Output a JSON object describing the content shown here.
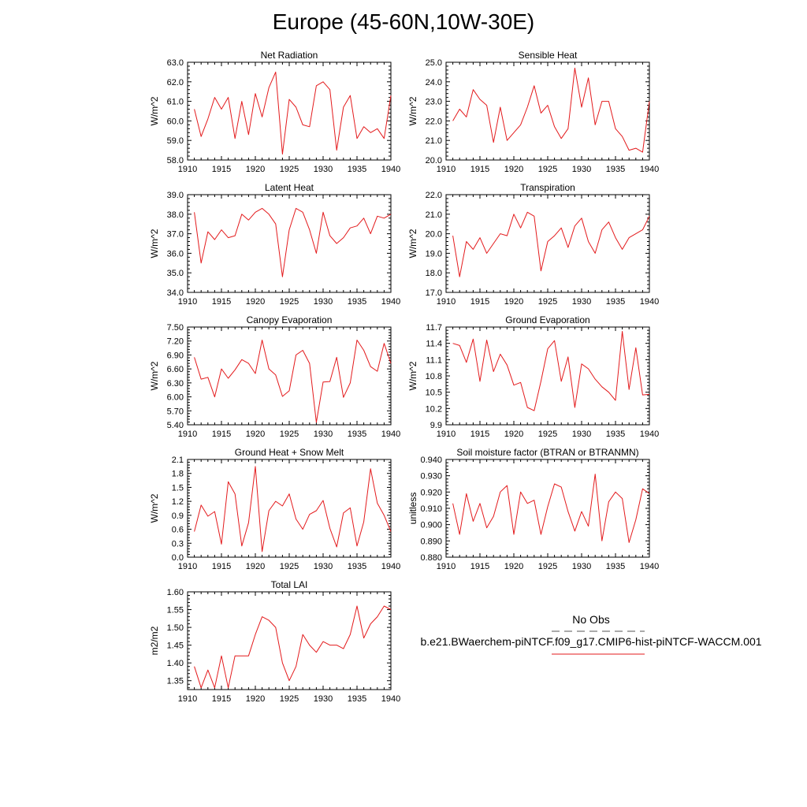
{
  "figure": {
    "title": "Europe (45-60N,10W-30E)"
  },
  "legend": {
    "obs_label": "No Obs",
    "obs_color": "#555555",
    "run_label": "b.e21.BWaerchem-piNTCF.f09_g17.CMIP6-hist-piNTCF-WACCM.001",
    "run_color": "#e31a1c"
  },
  "chart_data": [
    {
      "type": "line",
      "title": "Net Radiation",
      "ylabel": "W/m^2",
      "xlabel": "",
      "xlim": [
        1910,
        1940
      ],
      "ylim": [
        58.0,
        63.0
      ],
      "xticks": [
        1910,
        1915,
        1920,
        1925,
        1930,
        1935,
        1940
      ],
      "yticks": [
        "58.0",
        "59.0",
        "60.0",
        "61.0",
        "62.0",
        "63.0"
      ],
      "x": [
        1911,
        1912,
        1913,
        1914,
        1915,
        1916,
        1917,
        1918,
        1919,
        1920,
        1921,
        1922,
        1923,
        1924,
        1925,
        1926,
        1927,
        1928,
        1929,
        1930,
        1931,
        1932,
        1933,
        1934,
        1935,
        1936,
        1937,
        1938,
        1939,
        1940
      ],
      "series": [
        {
          "color": "#e31a1c",
          "values": [
            60.6,
            59.2,
            60.1,
            61.2,
            60.6,
            61.2,
            59.1,
            61.0,
            59.3,
            61.4,
            60.2,
            61.7,
            62.5,
            58.3,
            61.1,
            60.7,
            59.8,
            59.7,
            61.8,
            62.0,
            61.6,
            58.5,
            60.7,
            61.3,
            59.1,
            59.7,
            59.4,
            59.6,
            59.1,
            61.3
          ]
        }
      ]
    },
    {
      "type": "line",
      "title": "Sensible Heat",
      "ylabel": "W/m^2",
      "xlabel": "",
      "xlim": [
        1910,
        1940
      ],
      "ylim": [
        20.0,
        25.0
      ],
      "xticks": [
        1910,
        1915,
        1920,
        1925,
        1930,
        1935,
        1940
      ],
      "yticks": [
        "20.0",
        "21.0",
        "22.0",
        "23.0",
        "24.0",
        "25.0"
      ],
      "x": [
        1911,
        1912,
        1913,
        1914,
        1915,
        1916,
        1917,
        1918,
        1919,
        1920,
        1921,
        1922,
        1923,
        1924,
        1925,
        1926,
        1927,
        1928,
        1929,
        1930,
        1931,
        1932,
        1933,
        1934,
        1935,
        1936,
        1937,
        1938,
        1939,
        1940
      ],
      "series": [
        {
          "color": "#e31a1c",
          "values": [
            22.0,
            22.6,
            22.2,
            23.6,
            23.1,
            22.8,
            20.9,
            22.7,
            21.0,
            21.4,
            21.8,
            22.7,
            23.8,
            22.4,
            22.8,
            21.7,
            21.1,
            21.6,
            24.7,
            22.7,
            24.2,
            21.8,
            23.0,
            23.0,
            21.6,
            21.2,
            20.5,
            20.6,
            20.4,
            23.0
          ]
        }
      ]
    },
    {
      "type": "line",
      "title": "Latent Heat",
      "ylabel": "W/m^2",
      "xlabel": "",
      "xlim": [
        1910,
        1940
      ],
      "ylim": [
        34.0,
        39.0
      ],
      "xticks": [
        1910,
        1915,
        1920,
        1925,
        1930,
        1935,
        1940
      ],
      "yticks": [
        "34.0",
        "35.0",
        "36.0",
        "37.0",
        "38.0",
        "39.0"
      ],
      "x": [
        1911,
        1912,
        1913,
        1914,
        1915,
        1916,
        1917,
        1918,
        1919,
        1920,
        1921,
        1922,
        1923,
        1924,
        1925,
        1926,
        1927,
        1928,
        1929,
        1930,
        1931,
        1932,
        1933,
        1934,
        1935,
        1936,
        1937,
        1938,
        1939,
        1940
      ],
      "series": [
        {
          "color": "#e31a1c",
          "values": [
            38.1,
            35.5,
            37.1,
            36.7,
            37.2,
            36.8,
            36.9,
            38.0,
            37.7,
            38.1,
            38.3,
            38.0,
            37.5,
            34.8,
            37.2,
            38.3,
            38.1,
            37.2,
            36.0,
            38.1,
            36.9,
            36.5,
            36.8,
            37.3,
            37.4,
            37.8,
            37.0,
            37.9,
            37.8,
            38.0
          ]
        }
      ]
    },
    {
      "type": "line",
      "title": "Transpiration",
      "ylabel": "W/m^2",
      "xlabel": "",
      "xlim": [
        1910,
        1940
      ],
      "ylim": [
        17.0,
        22.0
      ],
      "xticks": [
        1910,
        1915,
        1920,
        1925,
        1930,
        1935,
        1940
      ],
      "yticks": [
        "17.0",
        "18.0",
        "19.0",
        "20.0",
        "21.0",
        "22.0"
      ],
      "x": [
        1911,
        1912,
        1913,
        1914,
        1915,
        1916,
        1917,
        1918,
        1919,
        1920,
        1921,
        1922,
        1923,
        1924,
        1925,
        1926,
        1927,
        1928,
        1929,
        1930,
        1931,
        1932,
        1933,
        1934,
        1935,
        1936,
        1937,
        1938,
        1939,
        1940
      ],
      "series": [
        {
          "color": "#e31a1c",
          "values": [
            19.9,
            17.8,
            19.6,
            19.2,
            19.8,
            19.0,
            19.5,
            20.0,
            19.9,
            21.0,
            20.3,
            21.1,
            20.9,
            18.1,
            19.6,
            19.9,
            20.3,
            19.3,
            20.4,
            20.8,
            19.6,
            19.0,
            20.2,
            20.6,
            19.8,
            19.2,
            19.8,
            20.0,
            20.2,
            20.9
          ]
        }
      ]
    },
    {
      "type": "line",
      "title": "Canopy Evaporation",
      "ylabel": "W/m^2",
      "xlabel": "",
      "xlim": [
        1910,
        1940
      ],
      "ylim": [
        5.4,
        7.5
      ],
      "xticks": [
        1910,
        1915,
        1920,
        1925,
        1930,
        1935,
        1940
      ],
      "yticks": [
        "5.40",
        "5.70",
        "6.00",
        "6.30",
        "6.60",
        "6.90",
        "7.20",
        "7.50"
      ],
      "x": [
        1911,
        1912,
        1913,
        1914,
        1915,
        1916,
        1917,
        1918,
        1919,
        1920,
        1921,
        1922,
        1923,
        1924,
        1925,
        1926,
        1927,
        1928,
        1929,
        1930,
        1931,
        1932,
        1933,
        1934,
        1935,
        1936,
        1937,
        1938,
        1939,
        1940
      ],
      "series": [
        {
          "color": "#e31a1c",
          "values": [
            6.85,
            6.38,
            6.42,
            6.0,
            6.6,
            6.4,
            6.58,
            6.8,
            6.72,
            6.5,
            7.22,
            6.6,
            6.47,
            6.01,
            6.13,
            6.9,
            7.0,
            6.72,
            5.45,
            6.32,
            6.33,
            6.85,
            5.99,
            6.3,
            7.22,
            7.0,
            6.65,
            6.55,
            7.15,
            6.72
          ]
        }
      ]
    },
    {
      "type": "line",
      "title": "Ground Evaporation",
      "ylabel": "W/m^2",
      "xlabel": "",
      "xlim": [
        1910,
        1940
      ],
      "ylim": [
        9.9,
        11.7
      ],
      "xticks": [
        1910,
        1915,
        1920,
        1925,
        1930,
        1935,
        1940
      ],
      "yticks": [
        "9.9",
        "10.2",
        "10.5",
        "10.8",
        "11.1",
        "11.4",
        "11.7"
      ],
      "x": [
        1911,
        1912,
        1913,
        1914,
        1915,
        1916,
        1917,
        1918,
        1919,
        1920,
        1921,
        1922,
        1923,
        1924,
        1925,
        1926,
        1927,
        1928,
        1929,
        1930,
        1931,
        1932,
        1933,
        1934,
        1935,
        1936,
        1937,
        1938,
        1939,
        1940
      ],
      "series": [
        {
          "color": "#e31a1c",
          "values": [
            11.4,
            11.36,
            11.05,
            11.48,
            10.7,
            11.46,
            10.88,
            11.2,
            11.0,
            10.63,
            10.68,
            10.22,
            10.16,
            10.7,
            11.3,
            11.45,
            10.7,
            11.15,
            10.22,
            11.02,
            10.93,
            10.74,
            10.6,
            10.5,
            10.35,
            11.62,
            10.55,
            11.32,
            10.45,
            10.46
          ]
        }
      ]
    },
    {
      "type": "line",
      "title": "Ground Heat + Snow Melt",
      "ylabel": "W/m^2",
      "xlabel": "",
      "xlim": [
        1910,
        1940
      ],
      "ylim": [
        0.0,
        2.1
      ],
      "xticks": [
        1910,
        1915,
        1920,
        1925,
        1930,
        1935,
        1940
      ],
      "yticks": [
        "0.0",
        "0.3",
        "0.6",
        "0.9",
        "1.2",
        "1.5",
        "1.8",
        "2.1"
      ],
      "x": [
        1911,
        1912,
        1913,
        1914,
        1915,
        1916,
        1917,
        1918,
        1919,
        1920,
        1921,
        1922,
        1923,
        1924,
        1925,
        1926,
        1927,
        1928,
        1929,
        1930,
        1931,
        1932,
        1933,
        1934,
        1935,
        1936,
        1937,
        1938,
        1939,
        1940
      ],
      "series": [
        {
          "color": "#e31a1c",
          "values": [
            0.55,
            1.12,
            0.88,
            0.98,
            0.28,
            1.62,
            1.36,
            0.24,
            0.74,
            1.95,
            0.12,
            1.0,
            1.2,
            1.1,
            1.36,
            0.82,
            0.6,
            0.92,
            1.0,
            1.22,
            0.62,
            0.22,
            0.95,
            1.06,
            0.24,
            0.76,
            1.9,
            1.16,
            0.9,
            0.55
          ]
        }
      ]
    },
    {
      "type": "line",
      "title": "Soil moisture factor (BTRAN or BTRANMN)",
      "ylabel": "unitless",
      "xlabel": "",
      "xlim": [
        1910,
        1940
      ],
      "ylim": [
        0.88,
        0.94
      ],
      "xticks": [
        1910,
        1915,
        1920,
        1925,
        1930,
        1935,
        1940
      ],
      "yticks": [
        "0.880",
        "0.890",
        "0.900",
        "0.910",
        "0.920",
        "0.930",
        "0.940"
      ],
      "x": [
        1911,
        1912,
        1913,
        1914,
        1915,
        1916,
        1917,
        1918,
        1919,
        1920,
        1921,
        1922,
        1923,
        1924,
        1925,
        1926,
        1927,
        1928,
        1929,
        1930,
        1931,
        1932,
        1933,
        1934,
        1935,
        1936,
        1937,
        1938,
        1939,
        1940
      ],
      "series": [
        {
          "color": "#e31a1c",
          "values": [
            0.913,
            0.894,
            0.919,
            0.902,
            0.913,
            0.898,
            0.905,
            0.92,
            0.924,
            0.894,
            0.92,
            0.913,
            0.915,
            0.894,
            0.911,
            0.925,
            0.923,
            0.908,
            0.896,
            0.908,
            0.899,
            0.931,
            0.89,
            0.914,
            0.92,
            0.916,
            0.889,
            0.903,
            0.922,
            0.919
          ]
        }
      ]
    },
    {
      "type": "line",
      "title": "Total LAI",
      "ylabel": "m2/m2",
      "xlabel": "",
      "xlim": [
        1910,
        1940
      ],
      "ylim": [
        1.325,
        1.6
      ],
      "xticks": [
        1910,
        1915,
        1920,
        1925,
        1930,
        1935,
        1940
      ],
      "yticks": [
        "1.35",
        "1.40",
        "1.45",
        "1.50",
        "1.55",
        "1.60"
      ],
      "x": [
        1911,
        1912,
        1913,
        1914,
        1915,
        1916,
        1917,
        1918,
        1919,
        1920,
        1921,
        1922,
        1923,
        1924,
        1925,
        1926,
        1927,
        1928,
        1929,
        1930,
        1931,
        1932,
        1933,
        1934,
        1935,
        1936,
        1937,
        1938,
        1939,
        1940
      ],
      "series": [
        {
          "color": "#e31a1c",
          "values": [
            1.39,
            1.33,
            1.38,
            1.33,
            1.42,
            1.33,
            1.42,
            1.42,
            1.42,
            1.48,
            1.53,
            1.52,
            1.5,
            1.4,
            1.35,
            1.39,
            1.48,
            1.45,
            1.43,
            1.46,
            1.45,
            1.45,
            1.44,
            1.48,
            1.56,
            1.47,
            1.51,
            1.53,
            1.56,
            1.55
          ]
        }
      ]
    }
  ]
}
